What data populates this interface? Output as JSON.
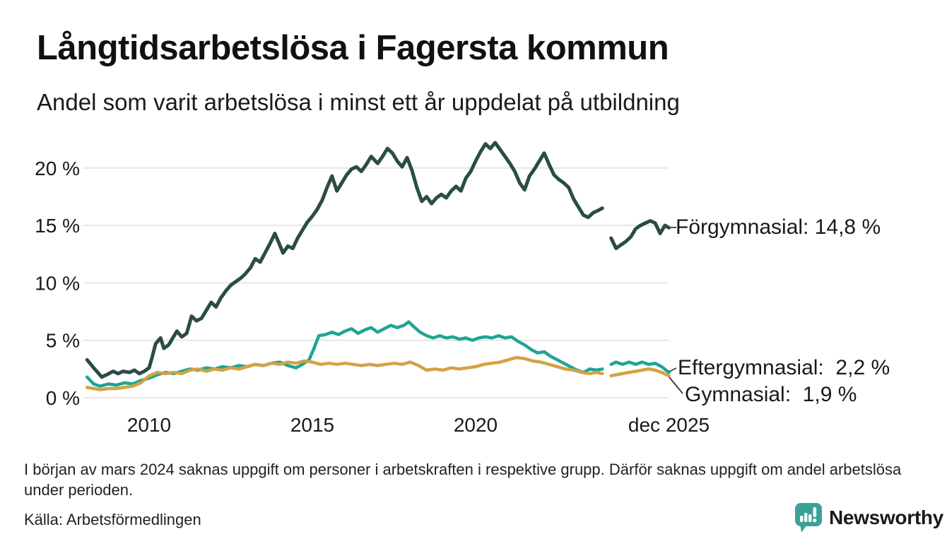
{
  "header": {
    "title": "Långtidsarbetslösa i Fagersta kommun",
    "subtitle": "Andel som varit arbetslösa i minst ett år uppdelat på utbildning"
  },
  "chart_data": {
    "type": "line",
    "title": "Långtidsarbetslösa i Fagersta kommun",
    "subtitle": "Andel som varit arbetslösa i minst ett år uppdelat på utbildning",
    "unit": "%",
    "grid": true,
    "legend_position": "end-of-line labels, right side",
    "colors": {
      "grid": "#e6e6e6",
      "axis_text": "#1a1a1a"
    },
    "x_axis": {
      "range": [
        2008.1,
        2025.92
      ],
      "ticks": [
        {
          "label": "2010",
          "x": 2010
        },
        {
          "label": "2015",
          "x": 2015
        },
        {
          "label": "2020",
          "x": 2020
        },
        {
          "label": "dec 2025",
          "x": 2025.92
        }
      ]
    },
    "y_axis": {
      "range": [
        0,
        22.5
      ],
      "ticks": [
        {
          "label": "0 %",
          "value": 0
        },
        {
          "label": "5 %",
          "value": 5
        },
        {
          "label": "10 %",
          "value": 10
        },
        {
          "label": "15 %",
          "value": 15
        },
        {
          "label": "20 %",
          "value": 20
        }
      ]
    },
    "gap_note": "no data at beginning of March 2024",
    "series": [
      {
        "name": "Förgymnasial",
        "end_label": "Förgymnasial: 14,8 %",
        "end_value": "14,8 %",
        "color": "#2b4c46",
        "width": 5,
        "points": [
          [
            2008.1,
            3.3
          ],
          [
            2008.3,
            2.6
          ],
          [
            2008.55,
            1.8
          ],
          [
            2008.7,
            2.0
          ],
          [
            2008.9,
            2.3
          ],
          [
            2009.05,
            2.1
          ],
          [
            2009.2,
            2.3
          ],
          [
            2009.4,
            2.2
          ],
          [
            2009.55,
            2.4
          ],
          [
            2009.7,
            2.1
          ],
          [
            2009.85,
            2.3
          ],
          [
            2010.0,
            2.6
          ],
          [
            2010.1,
            3.6
          ],
          [
            2010.2,
            4.7
          ],
          [
            2010.35,
            5.2
          ],
          [
            2010.45,
            4.3
          ],
          [
            2010.6,
            4.6
          ],
          [
            2010.85,
            5.8
          ],
          [
            2011.0,
            5.3
          ],
          [
            2011.15,
            5.6
          ],
          [
            2011.3,
            7.1
          ],
          [
            2011.45,
            6.7
          ],
          [
            2011.6,
            6.9
          ],
          [
            2011.75,
            7.6
          ],
          [
            2011.9,
            8.3
          ],
          [
            2012.05,
            7.9
          ],
          [
            2012.2,
            8.7
          ],
          [
            2012.35,
            9.3
          ],
          [
            2012.5,
            9.8
          ],
          [
            2012.65,
            10.1
          ],
          [
            2012.8,
            10.4
          ],
          [
            2012.95,
            10.8
          ],
          [
            2013.1,
            11.3
          ],
          [
            2013.25,
            12.1
          ],
          [
            2013.4,
            11.8
          ],
          [
            2013.55,
            12.6
          ],
          [
            2013.7,
            13.4
          ],
          [
            2013.85,
            14.3
          ],
          [
            2014.0,
            13.3
          ],
          [
            2014.1,
            12.6
          ],
          [
            2014.25,
            13.2
          ],
          [
            2014.4,
            13.0
          ],
          [
            2014.55,
            13.9
          ],
          [
            2014.7,
            14.6
          ],
          [
            2014.85,
            15.3
          ],
          [
            2015.0,
            15.8
          ],
          [
            2015.15,
            16.4
          ],
          [
            2015.3,
            17.2
          ],
          [
            2015.45,
            18.3
          ],
          [
            2015.6,
            19.3
          ],
          [
            2015.75,
            18.0
          ],
          [
            2015.9,
            18.7
          ],
          [
            2016.05,
            19.4
          ],
          [
            2016.2,
            19.9
          ],
          [
            2016.35,
            20.1
          ],
          [
            2016.5,
            19.7
          ],
          [
            2016.65,
            20.3
          ],
          [
            2016.8,
            21.0
          ],
          [
            2017.0,
            20.4
          ],
          [
            2017.15,
            21.0
          ],
          [
            2017.3,
            21.7
          ],
          [
            2017.45,
            21.3
          ],
          [
            2017.6,
            20.6
          ],
          [
            2017.75,
            20.1
          ],
          [
            2017.9,
            20.9
          ],
          [
            2018.05,
            19.8
          ],
          [
            2018.2,
            18.3
          ],
          [
            2018.35,
            17.1
          ],
          [
            2018.5,
            17.5
          ],
          [
            2018.65,
            16.9
          ],
          [
            2018.8,
            17.4
          ],
          [
            2018.95,
            17.7
          ],
          [
            2019.1,
            17.4
          ],
          [
            2019.25,
            18.0
          ],
          [
            2019.4,
            18.4
          ],
          [
            2019.55,
            18.0
          ],
          [
            2019.7,
            19.1
          ],
          [
            2019.85,
            19.7
          ],
          [
            2020.0,
            20.6
          ],
          [
            2020.15,
            21.4
          ],
          [
            2020.3,
            22.1
          ],
          [
            2020.45,
            21.7
          ],
          [
            2020.6,
            22.2
          ],
          [
            2020.75,
            21.6
          ],
          [
            2020.9,
            21.0
          ],
          [
            2021.05,
            20.4
          ],
          [
            2021.2,
            19.7
          ],
          [
            2021.35,
            18.7
          ],
          [
            2021.5,
            18.1
          ],
          [
            2021.65,
            19.3
          ],
          [
            2021.8,
            19.9
          ],
          [
            2021.95,
            20.6
          ],
          [
            2022.1,
            21.3
          ],
          [
            2022.25,
            20.3
          ],
          [
            2022.4,
            19.4
          ],
          [
            2022.55,
            19.0
          ],
          [
            2022.7,
            18.7
          ],
          [
            2022.85,
            18.3
          ],
          [
            2023.0,
            17.3
          ],
          [
            2023.15,
            16.6
          ],
          [
            2023.3,
            15.9
          ],
          [
            2023.45,
            15.7
          ],
          [
            2023.6,
            16.1
          ],
          [
            2023.75,
            16.3
          ],
          [
            2023.88,
            16.5
          ],
          [
            2024.0,
            null
          ],
          [
            2024.15,
            13.9
          ],
          [
            2024.3,
            13.0
          ],
          [
            2024.45,
            13.3
          ],
          [
            2024.6,
            13.6
          ],
          [
            2024.75,
            14.0
          ],
          [
            2024.9,
            14.7
          ],
          [
            2025.05,
            15.0
          ],
          [
            2025.2,
            15.2
          ],
          [
            2025.35,
            15.4
          ],
          [
            2025.5,
            15.2
          ],
          [
            2025.65,
            14.3
          ],
          [
            2025.8,
            15.0
          ],
          [
            2025.92,
            14.8
          ]
        ]
      },
      {
        "name": "Eftergymnasial",
        "end_label": "Eftergymnasial:  2,2 %",
        "end_value": "2,2 %",
        "color": "#1da594",
        "width": 4.5,
        "points": [
          [
            2008.1,
            1.8
          ],
          [
            2008.3,
            1.2
          ],
          [
            2008.5,
            1.0
          ],
          [
            2008.75,
            1.2
          ],
          [
            2009.0,
            1.1
          ],
          [
            2009.25,
            1.3
          ],
          [
            2009.5,
            1.2
          ],
          [
            2009.75,
            1.5
          ],
          [
            2010.0,
            1.7
          ],
          [
            2010.25,
            2.0
          ],
          [
            2010.5,
            2.2
          ],
          [
            2010.75,
            2.1
          ],
          [
            2011.0,
            2.3
          ],
          [
            2011.25,
            2.5
          ],
          [
            2011.5,
            2.4
          ],
          [
            2011.75,
            2.6
          ],
          [
            2012.0,
            2.5
          ],
          [
            2012.25,
            2.7
          ],
          [
            2012.5,
            2.6
          ],
          [
            2012.75,
            2.8
          ],
          [
            2013.0,
            2.7
          ],
          [
            2013.25,
            2.9
          ],
          [
            2013.5,
            2.8
          ],
          [
            2013.75,
            3.0
          ],
          [
            2014.0,
            3.1
          ],
          [
            2014.25,
            2.8
          ],
          [
            2014.5,
            2.6
          ],
          [
            2014.7,
            2.9
          ],
          [
            2014.9,
            3.3
          ],
          [
            2015.05,
            4.3
          ],
          [
            2015.2,
            5.4
          ],
          [
            2015.4,
            5.5
          ],
          [
            2015.6,
            5.7
          ],
          [
            2015.8,
            5.5
          ],
          [
            2016.0,
            5.8
          ],
          [
            2016.2,
            6.0
          ],
          [
            2016.4,
            5.6
          ],
          [
            2016.6,
            5.9
          ],
          [
            2016.8,
            6.1
          ],
          [
            2017.0,
            5.7
          ],
          [
            2017.2,
            6.0
          ],
          [
            2017.4,
            6.3
          ],
          [
            2017.6,
            6.1
          ],
          [
            2017.8,
            6.3
          ],
          [
            2017.95,
            6.6
          ],
          [
            2018.1,
            6.2
          ],
          [
            2018.3,
            5.7
          ],
          [
            2018.5,
            5.4
          ],
          [
            2018.7,
            5.2
          ],
          [
            2018.9,
            5.4
          ],
          [
            2019.1,
            5.2
          ],
          [
            2019.3,
            5.3
          ],
          [
            2019.5,
            5.1
          ],
          [
            2019.7,
            5.2
          ],
          [
            2019.9,
            5.0
          ],
          [
            2020.1,
            5.2
          ],
          [
            2020.3,
            5.3
          ],
          [
            2020.5,
            5.2
          ],
          [
            2020.7,
            5.4
          ],
          [
            2020.9,
            5.2
          ],
          [
            2021.1,
            5.3
          ],
          [
            2021.3,
            4.9
          ],
          [
            2021.5,
            4.6
          ],
          [
            2021.7,
            4.2
          ],
          [
            2021.9,
            3.9
          ],
          [
            2022.1,
            4.0
          ],
          [
            2022.3,
            3.6
          ],
          [
            2022.5,
            3.3
          ],
          [
            2022.7,
            3.0
          ],
          [
            2022.9,
            2.7
          ],
          [
            2023.1,
            2.4
          ],
          [
            2023.3,
            2.2
          ],
          [
            2023.5,
            2.5
          ],
          [
            2023.7,
            2.4
          ],
          [
            2023.88,
            2.5
          ],
          [
            2024.0,
            null
          ],
          [
            2024.15,
            2.9
          ],
          [
            2024.3,
            3.1
          ],
          [
            2024.5,
            2.9
          ],
          [
            2024.7,
            3.1
          ],
          [
            2024.9,
            2.9
          ],
          [
            2025.1,
            3.1
          ],
          [
            2025.3,
            2.9
          ],
          [
            2025.5,
            3.0
          ],
          [
            2025.7,
            2.7
          ],
          [
            2025.92,
            2.2
          ]
        ]
      },
      {
        "name": "Gymnasial",
        "end_label": "Gymnasial:  1,9 %",
        "end_value": "1,9 %",
        "color": "#d3a245",
        "width": 4.5,
        "points": [
          [
            2008.1,
            0.9
          ],
          [
            2008.3,
            0.8
          ],
          [
            2008.5,
            0.7
          ],
          [
            2008.75,
            0.8
          ],
          [
            2009.0,
            0.8
          ],
          [
            2009.25,
            0.9
          ],
          [
            2009.5,
            1.0
          ],
          [
            2009.75,
            1.3
          ],
          [
            2010.0,
            1.9
          ],
          [
            2010.25,
            2.2
          ],
          [
            2010.5,
            2.1
          ],
          [
            2010.75,
            2.2
          ],
          [
            2011.0,
            2.1
          ],
          [
            2011.25,
            2.4
          ],
          [
            2011.5,
            2.5
          ],
          [
            2011.75,
            2.3
          ],
          [
            2012.0,
            2.5
          ],
          [
            2012.25,
            2.4
          ],
          [
            2012.5,
            2.6
          ],
          [
            2012.75,
            2.5
          ],
          [
            2013.0,
            2.7
          ],
          [
            2013.25,
            2.9
          ],
          [
            2013.5,
            2.8
          ],
          [
            2013.75,
            3.0
          ],
          [
            2014.0,
            2.9
          ],
          [
            2014.25,
            3.1
          ],
          [
            2014.5,
            3.0
          ],
          [
            2014.75,
            3.2
          ],
          [
            2015.0,
            3.1
          ],
          [
            2015.25,
            2.9
          ],
          [
            2015.5,
            3.0
          ],
          [
            2015.75,
            2.9
          ],
          [
            2016.0,
            3.0
          ],
          [
            2016.25,
            2.9
          ],
          [
            2016.5,
            2.8
          ],
          [
            2016.75,
            2.9
          ],
          [
            2017.0,
            2.8
          ],
          [
            2017.25,
            2.9
          ],
          [
            2017.5,
            3.0
          ],
          [
            2017.75,
            2.9
          ],
          [
            2018.0,
            3.1
          ],
          [
            2018.25,
            2.8
          ],
          [
            2018.5,
            2.4
          ],
          [
            2018.75,
            2.5
          ],
          [
            2019.0,
            2.4
          ],
          [
            2019.25,
            2.6
          ],
          [
            2019.5,
            2.5
          ],
          [
            2019.75,
            2.6
          ],
          [
            2020.0,
            2.7
          ],
          [
            2020.25,
            2.9
          ],
          [
            2020.5,
            3.0
          ],
          [
            2020.75,
            3.1
          ],
          [
            2021.0,
            3.3
          ],
          [
            2021.25,
            3.5
          ],
          [
            2021.5,
            3.4
          ],
          [
            2021.75,
            3.2
          ],
          [
            2022.0,
            3.1
          ],
          [
            2022.25,
            2.9
          ],
          [
            2022.5,
            2.7
          ],
          [
            2022.75,
            2.5
          ],
          [
            2023.0,
            2.4
          ],
          [
            2023.25,
            2.2
          ],
          [
            2023.5,
            2.1
          ],
          [
            2023.7,
            2.2
          ],
          [
            2023.88,
            2.1
          ],
          [
            2024.0,
            null
          ],
          [
            2024.15,
            1.9
          ],
          [
            2024.3,
            2.0
          ],
          [
            2024.5,
            2.1
          ],
          [
            2024.7,
            2.2
          ],
          [
            2024.9,
            2.3
          ],
          [
            2025.1,
            2.4
          ],
          [
            2025.3,
            2.5
          ],
          [
            2025.5,
            2.4
          ],
          [
            2025.7,
            2.2
          ],
          [
            2025.92,
            1.9
          ]
        ]
      }
    ]
  },
  "footer": {
    "note": "I början av mars 2024 saknas uppgift om personer i arbetskraften i respektive grupp. Därför saknas uppgift om andel arbetslösa under perioden.",
    "source": "Källa: Arbetsförmedlingen",
    "brand": "Newsworthy",
    "brand_color": "#36a39a"
  }
}
